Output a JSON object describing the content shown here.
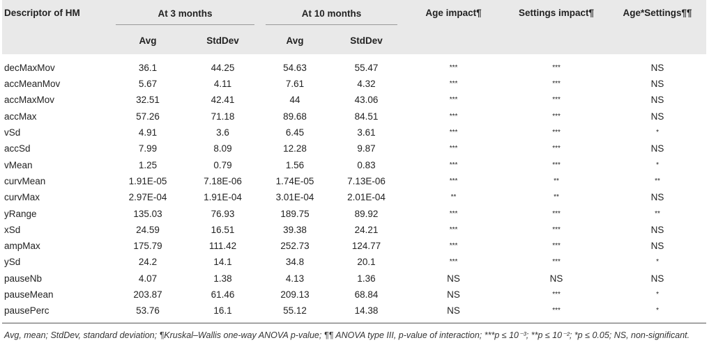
{
  "header": {
    "descriptor": "Descriptor of HM",
    "group_3": "At 3 months",
    "group_10": "At 10 months",
    "age_impact": "Age impact¶",
    "settings_impact": "Settings impact¶",
    "interaction": "Age*Settings¶¶",
    "avg": "Avg",
    "stddev": "StdDev"
  },
  "rows": [
    {
      "name": "decMaxMov",
      "avg3": "36.1",
      "sd3": "44.25",
      "avg10": "54.63",
      "sd10": "55.47",
      "age": "***",
      "settings": "***",
      "inter": "NS"
    },
    {
      "name": "accMeanMov",
      "avg3": "5.67",
      "sd3": "4.11",
      "avg10": "7.61",
      "sd10": "4.32",
      "age": "***",
      "settings": "***",
      "inter": "NS"
    },
    {
      "name": "accMaxMov",
      "avg3": "32.51",
      "sd3": "42.41",
      "avg10": "44",
      "sd10": "43.06",
      "age": "***",
      "settings": "***",
      "inter": "NS"
    },
    {
      "name": "accMax",
      "avg3": "57.26",
      "sd3": "71.18",
      "avg10": "89.68",
      "sd10": "84.51",
      "age": "***",
      "settings": "***",
      "inter": "NS"
    },
    {
      "name": "vSd",
      "avg3": "4.91",
      "sd3": "3.6",
      "avg10": "6.45",
      "sd10": "3.61",
      "age": "***",
      "settings": "***",
      "inter": "*"
    },
    {
      "name": "accSd",
      "avg3": "7.99",
      "sd3": "8.09",
      "avg10": "12.28",
      "sd10": "9.87",
      "age": "***",
      "settings": "***",
      "inter": "NS"
    },
    {
      "name": "vMean",
      "avg3": "1.25",
      "sd3": "0.79",
      "avg10": "1.56",
      "sd10": "0.83",
      "age": "***",
      "settings": "***",
      "inter": "*"
    },
    {
      "name": "curvMean",
      "avg3": "1.91E-05",
      "sd3": "7.18E-06",
      "avg10": "1.74E-05",
      "sd10": "7.13E-06",
      "age": "***",
      "settings": "**",
      "inter": "**"
    },
    {
      "name": "curvMax",
      "avg3": "2.97E-04",
      "sd3": "1.91E-04",
      "avg10": "3.01E-04",
      "sd10": "2.01E-04",
      "age": "**",
      "settings": "**",
      "inter": "NS"
    },
    {
      "name": "yRange",
      "avg3": "135.03",
      "sd3": "76.93",
      "avg10": "189.75",
      "sd10": "89.92",
      "age": "***",
      "settings": "***",
      "inter": "**"
    },
    {
      "name": "xSd",
      "avg3": "24.59",
      "sd3": "16.51",
      "avg10": "39.38",
      "sd10": "24.21",
      "age": "***",
      "settings": "***",
      "inter": "NS"
    },
    {
      "name": "ampMax",
      "avg3": "175.79",
      "sd3": "111.42",
      "avg10": "252.73",
      "sd10": "124.77",
      "age": "***",
      "settings": "***",
      "inter": "NS"
    },
    {
      "name": "ySd",
      "avg3": "24.2",
      "sd3": "14.1",
      "avg10": "34.8",
      "sd10": "20.1",
      "age": "***",
      "settings": "***",
      "inter": "*"
    },
    {
      "name": "pauseNb",
      "avg3": "4.07",
      "sd3": "1.38",
      "avg10": "4.13",
      "sd10": "1.36",
      "age": "NS",
      "settings": "NS",
      "inter": "NS"
    },
    {
      "name": "pauseMean",
      "avg3": "203.87",
      "sd3": "61.46",
      "avg10": "209.13",
      "sd10": "68.84",
      "age": "NS",
      "settings": "***",
      "inter": "*"
    },
    {
      "name": "pausePerc",
      "avg3": "53.76",
      "sd3": "16.1",
      "avg10": "55.12",
      "sd10": "14.38",
      "age": "NS",
      "settings": "***",
      "inter": "*"
    }
  ],
  "footnote": "Avg, mean; StdDev, standard deviation; ¶Kruskal–Wallis one-way ANOVA p-value; ¶¶ ANOVA type III, p-value of interaction; ***p ≤ 10⁻³; **p ≤ 10⁻²; *p ≤ 0.05; NS, non-significant."
}
